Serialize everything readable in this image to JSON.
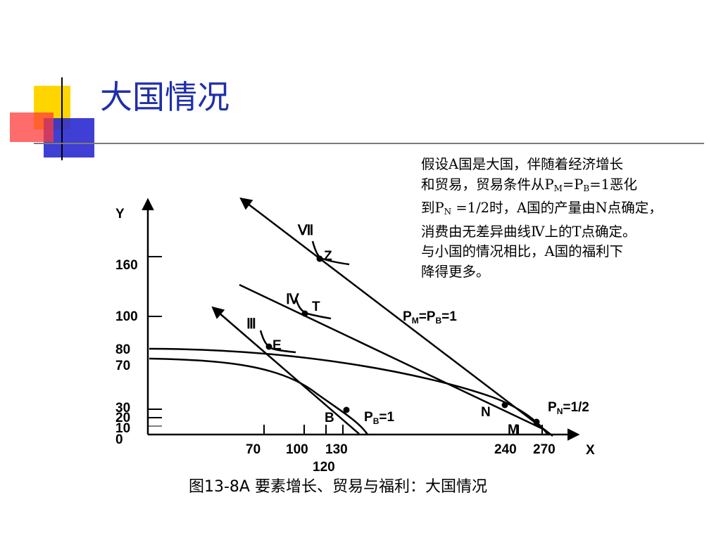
{
  "slide": {
    "title": "大国情况",
    "description_lines": [
      "假设A国是大国，伴随着经济增长",
      "和贸易，贸易条件从P|M|=P|B|=1恶化",
      "到P|N| =1/2时，A国的产量由N点确定，",
      "消费由无差异曲线Ⅳ上的T点确定。",
      "与小国的情况相比，A国的福利下",
      "降得更多。"
    ],
    "caption": "图13-8A  要素增长、贸易与福利：大国情况"
  },
  "colors": {
    "title": "#1f2fa8",
    "deco_yellow": "#ffd500",
    "deco_red": "#ff3030",
    "deco_blue": "#2a2ad0"
  },
  "diagram": {
    "axis_labels": {
      "y": "Y",
      "x": "X"
    },
    "y_ticks": [
      "160",
      "100",
      "80",
      "70",
      "30",
      "20",
      "10",
      "0"
    ],
    "x_ticks": [
      "70",
      "100",
      "130",
      "120",
      "240",
      "270"
    ],
    "curve_labels": {
      "VII": "Ⅶ",
      "IV": "Ⅳ",
      "III": "Ⅲ"
    },
    "points": {
      "Z": "Z",
      "T": "T",
      "E": "E",
      "B": "B",
      "N": "N",
      "M": "M"
    },
    "price_lines": {
      "pm_pb": {
        "p1": "P",
        "s1": "M",
        "mid": "=P",
        "s2": "B",
        "tail": "=1"
      },
      "pb": {
        "p": "P",
        "s": "B",
        "tail": "=1"
      },
      "pn": {
        "p": "P",
        "s": "N",
        "tail": "=1/2"
      }
    }
  }
}
